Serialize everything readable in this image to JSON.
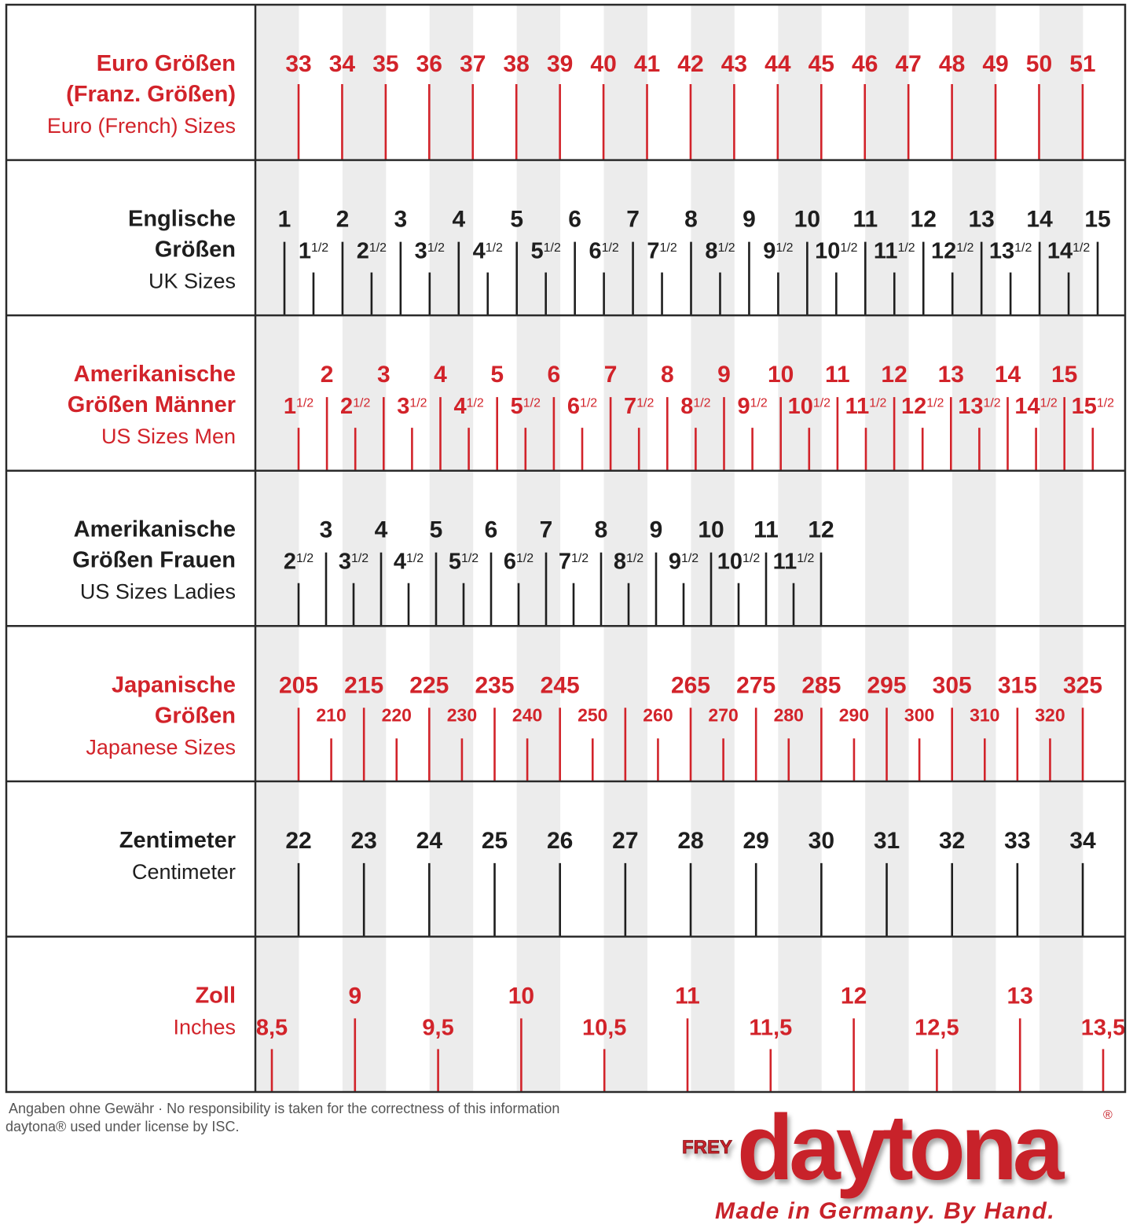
{
  "chart_data": {
    "type": "table",
    "colors": {
      "red": "#d2232a",
      "black": "#1e1e1e",
      "stripe": "#ececec",
      "grid": "#2a2a2a"
    },
    "rows": [
      {
        "id": "euro",
        "title": [
          "Euro Größen",
          "(Franz. Größen)"
        ],
        "subtitle": "Euro (French) Sizes",
        "color": "red",
        "major": [
          "33",
          "34",
          "35",
          "36",
          "37",
          "38",
          "39",
          "40",
          "41",
          "42",
          "43",
          "44",
          "45",
          "46",
          "47",
          "48",
          "49",
          "50",
          "51"
        ],
        "major_values": [
          33,
          34,
          35,
          36,
          37,
          38,
          39,
          40,
          41,
          42,
          43,
          44,
          45,
          46,
          47,
          48,
          49,
          50,
          51
        ],
        "minor": [],
        "minor_values": []
      },
      {
        "id": "uk",
        "title": [
          "Englische",
          "Größen"
        ],
        "subtitle": "UK Sizes",
        "color": "black",
        "major": [
          "1",
          "2",
          "3",
          "4",
          "5",
          "6",
          "7",
          "8",
          "9",
          "10",
          "11",
          "12",
          "13",
          "14",
          "15"
        ],
        "major_values": [
          1,
          2,
          3,
          4,
          5,
          6,
          7,
          8,
          9,
          10,
          11,
          12,
          13,
          14,
          15
        ],
        "minor": [
          "1½",
          "2½",
          "3½",
          "4½",
          "5½",
          "6½",
          "7½",
          "8½",
          "9½",
          "10½",
          "11½",
          "12½",
          "13½",
          "14½"
        ],
        "minor_values": [
          1.5,
          2.5,
          3.5,
          4.5,
          5.5,
          6.5,
          7.5,
          8.5,
          9.5,
          10.5,
          11.5,
          12.5,
          13.5,
          14.5
        ]
      },
      {
        "id": "us-men",
        "title": [
          "Amerikanische",
          "Größen Männer"
        ],
        "subtitle": "US Sizes Men",
        "color": "red",
        "major": [
          "2",
          "3",
          "4",
          "5",
          "6",
          "7",
          "8",
          "9",
          "10",
          "11",
          "12",
          "13",
          "14",
          "15"
        ],
        "major_values": [
          2,
          3,
          4,
          5,
          6,
          7,
          8,
          9,
          10,
          11,
          12,
          13,
          14,
          15
        ],
        "minor": [
          "1½",
          "2½",
          "3½",
          "4½",
          "5½",
          "6½",
          "7½",
          "8½",
          "9½",
          "10½",
          "11½",
          "12½",
          "13½",
          "14½",
          "15½"
        ],
        "minor_values": [
          1.5,
          2.5,
          3.5,
          4.5,
          5.5,
          6.5,
          7.5,
          8.5,
          9.5,
          10.5,
          11.5,
          12.5,
          13.5,
          14.5,
          15.5
        ]
      },
      {
        "id": "us-ladies",
        "title": [
          "Amerikanische",
          "Größen Frauen"
        ],
        "subtitle": "US Sizes Ladies",
        "color": "black",
        "major": [
          "3",
          "4",
          "5",
          "6",
          "7",
          "8",
          "9",
          "10",
          "11",
          "12"
        ],
        "major_values": [
          3,
          4,
          5,
          6,
          7,
          8,
          9,
          10,
          11,
          12
        ],
        "minor": [
          "2½",
          "3½",
          "4½",
          "5½",
          "6½",
          "7½",
          "8½",
          "9½",
          "10½",
          "11½"
        ],
        "minor_values": [
          2.5,
          3.5,
          4.5,
          5.5,
          6.5,
          7.5,
          8.5,
          9.5,
          10.5,
          11.5
        ]
      },
      {
        "id": "japan",
        "title": [
          "Japanische",
          "Größen"
        ],
        "subtitle": "Japanese Sizes",
        "color": "red",
        "major": [
          "205",
          "215",
          "225",
          "235",
          "245",
          "",
          "265",
          "275",
          "285",
          "295",
          "305",
          "315",
          "325"
        ],
        "major_values": [
          205,
          215,
          225,
          235,
          245,
          255,
          265,
          275,
          285,
          295,
          305,
          315,
          325
        ],
        "minor": [
          "210",
          "220",
          "230",
          "240",
          "250",
          "260",
          "270",
          "280",
          "290",
          "300",
          "310",
          "320"
        ],
        "minor_values": [
          210,
          220,
          230,
          240,
          250,
          260,
          270,
          280,
          290,
          300,
          310,
          320
        ]
      },
      {
        "id": "cm",
        "title": [
          "Zentimeter"
        ],
        "subtitle": "Centimeter",
        "color": "black",
        "major": [
          "22",
          "23",
          "24",
          "25",
          "26",
          "27",
          "28",
          "29",
          "30",
          "31",
          "32",
          "33",
          "34"
        ],
        "major_values": [
          22,
          23,
          24,
          25,
          26,
          27,
          28,
          29,
          30,
          31,
          32,
          33,
          34
        ],
        "minor": [],
        "minor_values": []
      },
      {
        "id": "inch",
        "title": [
          "Zoll"
        ],
        "subtitle": "Inches",
        "color": "red",
        "major": [
          "9",
          "10",
          "11",
          "12",
          "13"
        ],
        "major_values": [
          9,
          10,
          11,
          12,
          13
        ],
        "minor": [
          "8,5",
          "9,5",
          "10,5",
          "11,5",
          "12,5",
          "13,5"
        ],
        "minor_values": [
          8.5,
          9.5,
          10.5,
          11.5,
          12.5,
          13.5
        ]
      }
    ]
  },
  "footer": {
    "disclaimer": "Angaben ohne Gewähr · No responsibility is taken for the correctness of this information",
    "license": "daytona® used under license by ISC."
  },
  "logo": {
    "prefix": "FREY",
    "brand": "daytona",
    "registered": "®",
    "tagline": "Made in Germany. By Hand."
  }
}
